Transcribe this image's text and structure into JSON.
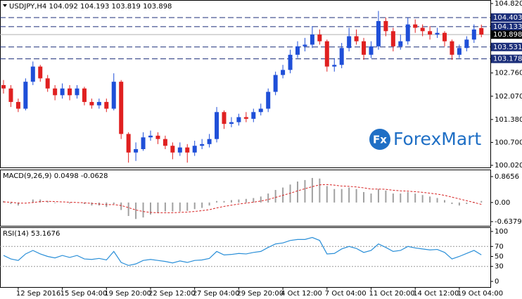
{
  "chart_data": [
    {
      "type": "candlestick",
      "title": "USDJPY,H4  104.092 104.193 103.819 103.898",
      "categories": [
        null,
        null,
        "12 Sep 2016",
        null,
        null,
        null,
        null,
        null,
        "15 Sep 04:00",
        null,
        null,
        null,
        null,
        null,
        "19 Sep 20:00",
        null,
        null,
        null,
        null,
        null,
        "22 Sep 12:00",
        null,
        null,
        null,
        null,
        null,
        "27 Sep 04:00",
        null,
        null,
        null,
        null,
        null,
        "29 Sep 20:00",
        null,
        null,
        null,
        null,
        null,
        "4 Oct 12:00",
        null,
        null,
        null,
        null,
        null,
        "7 Oct 04:00",
        null,
        null,
        null,
        null,
        null,
        "11 Oct 20:00",
        null,
        null,
        null,
        null,
        null,
        "14 Oct 12:00",
        null,
        null,
        null,
        null,
        null,
        "19 Oct 04:00",
        null,
        null,
        null
      ],
      "open": [
        102.4,
        102.3,
        101.9,
        101.7,
        102.5,
        102.95,
        102.6,
        102.3,
        102.1,
        102.3,
        102.1,
        102.3,
        101.9,
        101.8,
        101.9,
        101.7,
        102.5,
        100.95,
        100.4,
        100.5,
        100.85,
        100.9,
        100.8,
        100.6,
        100.4,
        100.55,
        100.4,
        100.6,
        100.65,
        100.8,
        101.6,
        101.25,
        101.3,
        101.45,
        101.4,
        101.6,
        101.7,
        102.2,
        102.7,
        102.85,
        103.3,
        103.55,
        103.6,
        103.9,
        103.7,
        102.95,
        103.0,
        103.5,
        103.85,
        103.7,
        103.3,
        103.55,
        104.3,
        104.0,
        103.55,
        103.7,
        104.2,
        104.1,
        104.0,
        103.9,
        103.95,
        103.7,
        103.3,
        103.5,
        103.75,
        104.092
      ],
      "high": [
        102.55,
        102.4,
        102.0,
        102.6,
        103.1,
        103.0,
        102.7,
        102.4,
        102.45,
        102.4,
        102.4,
        102.35,
        102.0,
        102.0,
        102.0,
        102.75,
        102.55,
        101.0,
        100.7,
        101.0,
        101.05,
        101.0,
        100.9,
        100.7,
        100.7,
        100.65,
        100.75,
        100.8,
        100.95,
        101.75,
        101.65,
        101.45,
        101.55,
        101.6,
        101.7,
        101.85,
        102.3,
        102.8,
        103.0,
        103.45,
        103.7,
        103.8,
        104.15,
        104.05,
        103.75,
        103.2,
        103.65,
        104.1,
        104.05,
        103.8,
        103.7,
        104.6,
        104.4,
        104.1,
        103.9,
        104.4,
        104.35,
        104.2,
        104.15,
        104.1,
        104.0,
        103.75,
        103.6,
        103.85,
        104.2,
        104.193
      ],
      "low": [
        102.15,
        101.75,
        101.6,
        101.65,
        102.4,
        102.5,
        102.2,
        101.95,
        102.0,
        101.95,
        102.0,
        101.8,
        101.7,
        101.7,
        101.6,
        101.65,
        100.8,
        100.1,
        100.15,
        100.45,
        100.75,
        100.65,
        100.5,
        100.2,
        100.3,
        100.1,
        100.3,
        100.5,
        100.55,
        100.7,
        101.1,
        101.15,
        101.2,
        101.3,
        101.3,
        101.5,
        101.6,
        102.1,
        102.6,
        102.75,
        103.2,
        103.4,
        103.5,
        103.6,
        102.8,
        102.8,
        102.9,
        103.4,
        103.6,
        103.15,
        103.2,
        103.45,
        103.85,
        103.4,
        103.45,
        103.6,
        103.95,
        103.85,
        103.75,
        103.8,
        103.55,
        103.15,
        103.2,
        103.4,
        103.65,
        103.819
      ],
      "close": [
        102.3,
        101.9,
        101.7,
        102.5,
        102.95,
        102.6,
        102.3,
        102.1,
        102.3,
        102.1,
        102.3,
        101.9,
        101.8,
        101.9,
        101.7,
        102.5,
        100.95,
        100.4,
        100.5,
        100.85,
        100.9,
        100.8,
        100.6,
        100.4,
        100.55,
        100.4,
        100.6,
        100.65,
        100.8,
        101.6,
        101.25,
        101.3,
        101.45,
        101.4,
        101.6,
        101.7,
        102.2,
        102.7,
        102.85,
        103.3,
        103.55,
        103.6,
        103.9,
        103.7,
        102.95,
        103.0,
        103.5,
        103.85,
        103.7,
        103.3,
        103.55,
        104.3,
        104.0,
        103.55,
        103.7,
        104.2,
        104.1,
        104.0,
        103.9,
        103.95,
        103.7,
        103.3,
        103.5,
        103.75,
        104.05,
        103.898
      ],
      "up_color": "#1f4fd8",
      "down_color": "#e02020",
      "ylim": [
        100.02,
        104.82
      ],
      "yticks": [
        {
          "value": 104.82,
          "label": "104.820"
        },
        {
          "value": 102.76,
          "label": "102.760"
        },
        {
          "value": 102.07,
          "label": "102.070"
        },
        {
          "value": 101.38,
          "label": "101.380"
        },
        {
          "value": 100.7,
          "label": "100.700"
        },
        {
          "value": 100.02,
          "label": "100.020"
        }
      ],
      "levels": [
        104.403,
        104.133,
        103.531,
        103.178
      ],
      "level_color": "#1c2f7a",
      "current_price": 103.898,
      "watermark": {
        "icon": "Fx",
        "text": "ForexMart"
      }
    },
    {
      "type": "macd",
      "title": "MACD(9,26,9) 0.0498 -0.0628",
      "histogram": [
        0.05,
        -0.05,
        -0.1,
        0.0,
        0.1,
        0.1,
        0.05,
        -0.02,
        0.0,
        -0.03,
        0.0,
        -0.05,
        -0.1,
        -0.1,
        -0.15,
        -0.05,
        -0.25,
        -0.45,
        -0.55,
        -0.5,
        -0.4,
        -0.35,
        -0.3,
        -0.3,
        -0.3,
        -0.28,
        -0.22,
        -0.18,
        -0.1,
        0.05,
        0.05,
        0.08,
        0.1,
        0.12,
        0.15,
        0.2,
        0.3,
        0.42,
        0.5,
        0.6,
        0.7,
        0.75,
        0.82,
        0.8,
        0.55,
        0.45,
        0.45,
        0.5,
        0.45,
        0.35,
        0.3,
        0.45,
        0.4,
        0.3,
        0.3,
        0.35,
        0.3,
        0.25,
        0.2,
        0.15,
        0.08,
        -0.05,
        -0.1,
        -0.05,
        0.02,
        0.0498
      ],
      "signal": [
        0.02,
        0.01,
        -0.02,
        -0.02,
        0.0,
        0.03,
        0.04,
        0.03,
        0.02,
        0.01,
        0.0,
        -0.01,
        -0.03,
        -0.05,
        -0.07,
        -0.07,
        -0.1,
        -0.17,
        -0.25,
        -0.3,
        -0.33,
        -0.34,
        -0.34,
        -0.34,
        -0.33,
        -0.32,
        -0.3,
        -0.27,
        -0.24,
        -0.18,
        -0.13,
        -0.09,
        -0.05,
        -0.02,
        0.01,
        0.05,
        0.1,
        0.17,
        0.24,
        0.31,
        0.39,
        0.46,
        0.53,
        0.59,
        0.6,
        0.58,
        0.55,
        0.54,
        0.52,
        0.49,
        0.45,
        0.45,
        0.44,
        0.41,
        0.39,
        0.38,
        0.36,
        0.34,
        0.31,
        0.28,
        0.24,
        0.18,
        0.12,
        0.06,
        0.0,
        -0.0628
      ],
      "histogram_color": "#a0a0a0",
      "signal_color": "#d62020",
      "ylim": [
        -0.6379,
        0.8656
      ],
      "yticks": [
        0.8656,
        {
          "value": 0,
          "label": "0.00"
        },
        -0.6379
      ]
    },
    {
      "type": "line",
      "title": "RSI(14) 53.1676",
      "values": [
        52,
        45,
        42,
        55,
        62,
        55,
        50,
        47,
        52,
        48,
        52,
        45,
        44,
        46,
        43,
        60,
        38,
        32,
        35,
        42,
        44,
        42,
        40,
        37,
        41,
        38,
        42,
        43,
        46,
        60,
        53,
        54,
        56,
        55,
        58,
        60,
        68,
        75,
        77,
        82,
        84,
        84,
        88,
        82,
        55,
        56,
        65,
        70,
        66,
        58,
        62,
        75,
        68,
        60,
        62,
        70,
        67,
        65,
        63,
        64,
        58,
        45,
        50,
        56,
        62,
        53.1676
      ],
      "color": "#2a8fd8",
      "ylim": [
        0,
        100
      ],
      "yticks": [
        100,
        70,
        50,
        30,
        0
      ],
      "levels": [
        70,
        30
      ]
    }
  ]
}
